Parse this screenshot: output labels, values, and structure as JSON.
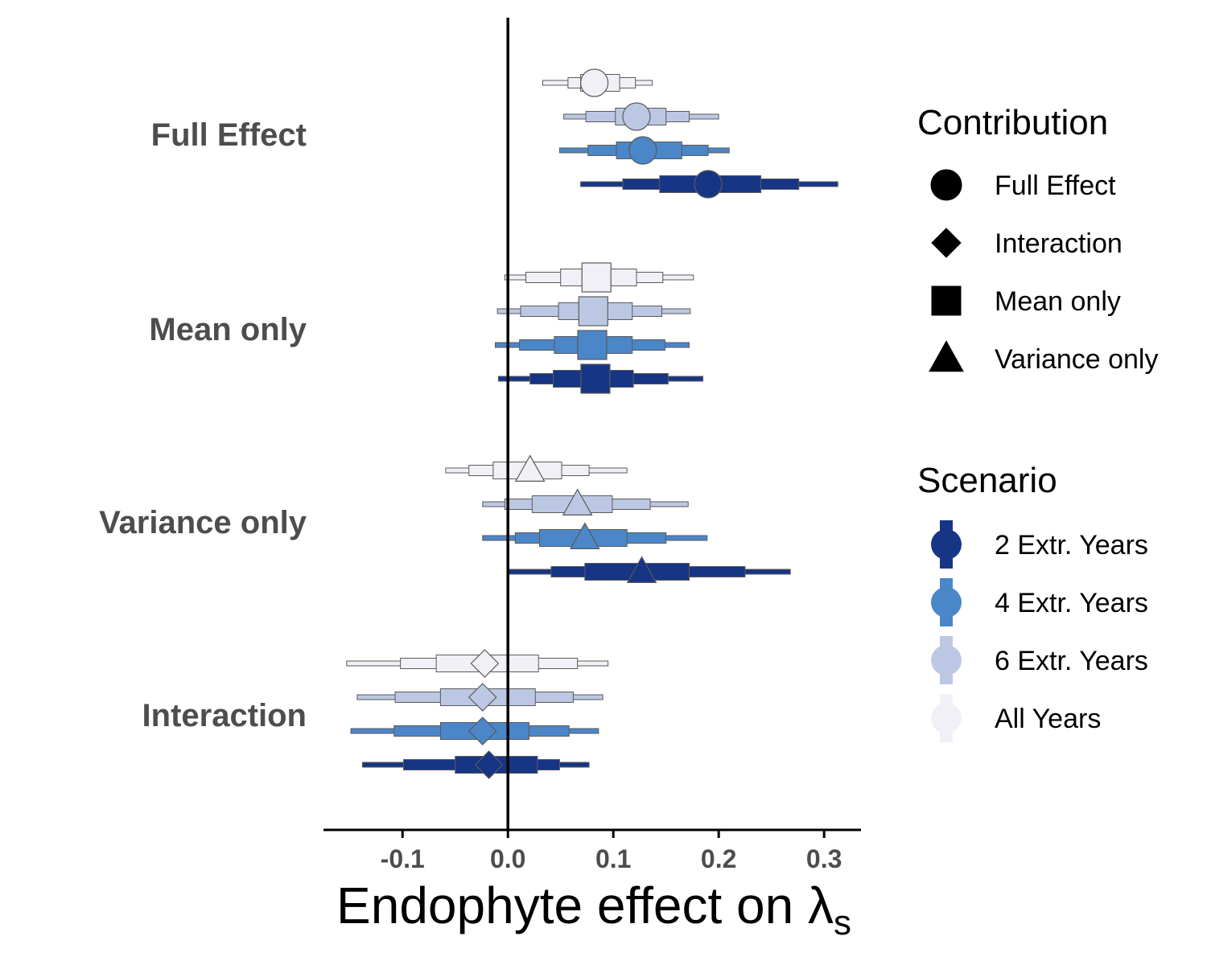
{
  "chart_data": {
    "type": "interval",
    "xlabel": "Endophyte effect on λ",
    "xlabel_subscript": "s",
    "xlim": [
      -0.175,
      0.335
    ],
    "xticks": [
      -0.1,
      0.0,
      0.1,
      0.2,
      0.3
    ],
    "xtick_labels": [
      "-0.1",
      "0.0",
      "0.1",
      "0.2",
      "0.3"
    ],
    "reference_line": 0,
    "categories": [
      "Full Effect",
      "Mean only",
      "Variance only",
      "Interaction"
    ],
    "scenarios": [
      {
        "name": "All Years",
        "color": "#f1f0f6"
      },
      {
        "name": "6 Extr. Years",
        "color": "#bcc8e3"
      },
      {
        "name": "4 Extr. Years",
        "color": "#4a86c8"
      },
      {
        "name": "2 Extr. Years",
        "color": "#163584"
      }
    ],
    "shapes": {
      "Full Effect": "circle",
      "Interaction": "diamond",
      "Mean only": "square",
      "Variance only": "triangle"
    },
    "series": [
      {
        "category": "Full Effect",
        "scenario": "All Years",
        "point": 0.082,
        "inner": [
          0.069,
          0.106
        ],
        "mid": [
          0.057,
          0.121
        ],
        "outer": [
          0.033,
          0.137
        ]
      },
      {
        "category": "Full Effect",
        "scenario": "6 Extr. Years",
        "point": 0.122,
        "inner": [
          0.102,
          0.15
        ],
        "mid": [
          0.074,
          0.172
        ],
        "outer": [
          0.053,
          0.2
        ]
      },
      {
        "category": "Full Effect",
        "scenario": "4 Extr. Years",
        "point": 0.128,
        "inner": [
          0.103,
          0.165
        ],
        "mid": [
          0.076,
          0.19
        ],
        "outer": [
          0.049,
          0.21
        ]
      },
      {
        "category": "Full Effect",
        "scenario": "2 Extr. Years",
        "point": 0.19,
        "inner": [
          0.144,
          0.24
        ],
        "mid": [
          0.109,
          0.276
        ],
        "outer": [
          0.069,
          0.313
        ]
      },
      {
        "category": "Mean only",
        "scenario": "All Years",
        "point": 0.084,
        "inner": [
          0.05,
          0.122
        ],
        "mid": [
          0.017,
          0.147
        ],
        "outer": [
          -0.003,
          0.176
        ]
      },
      {
        "category": "Mean only",
        "scenario": "6 Extr. Years",
        "point": 0.081,
        "inner": [
          0.048,
          0.118
        ],
        "mid": [
          0.012,
          0.146
        ],
        "outer": [
          -0.01,
          0.173
        ]
      },
      {
        "category": "Mean only",
        "scenario": "4 Extr. Years",
        "point": 0.08,
        "inner": [
          0.044,
          0.118
        ],
        "mid": [
          0.011,
          0.149
        ],
        "outer": [
          -0.012,
          0.172
        ]
      },
      {
        "category": "Mean only",
        "scenario": "2 Extr. Years",
        "point": 0.083,
        "inner": [
          0.043,
          0.119
        ],
        "mid": [
          0.021,
          0.152
        ],
        "outer": [
          -0.009,
          0.185
        ]
      },
      {
        "category": "Variance only",
        "scenario": "All Years",
        "point": 0.021,
        "inner": [
          -0.014,
          0.051
        ],
        "mid": [
          -0.037,
          0.077
        ],
        "outer": [
          -0.059,
          0.113
        ]
      },
      {
        "category": "Variance only",
        "scenario": "6 Extr. Years",
        "point": 0.066,
        "inner": [
          0.023,
          0.099
        ],
        "mid": [
          -0.003,
          0.135
        ],
        "outer": [
          -0.024,
          0.171
        ]
      },
      {
        "category": "Variance only",
        "scenario": "4 Extr. Years",
        "point": 0.073,
        "inner": [
          0.03,
          0.113
        ],
        "mid": [
          0.007,
          0.15
        ],
        "outer": [
          -0.024,
          0.189
        ]
      },
      {
        "category": "Variance only",
        "scenario": "2 Extr. Years",
        "point": 0.127,
        "inner": [
          0.073,
          0.172
        ],
        "mid": [
          0.041,
          0.225
        ],
        "outer": [
          0.001,
          0.268
        ]
      },
      {
        "category": "Interaction",
        "scenario": "All Years",
        "point": -0.022,
        "inner": [
          -0.068,
          0.029
        ],
        "mid": [
          -0.102,
          0.066
        ],
        "outer": [
          -0.153,
          0.095
        ]
      },
      {
        "category": "Interaction",
        "scenario": "6 Extr. Years",
        "point": -0.024,
        "inner": [
          -0.064,
          0.026
        ],
        "mid": [
          -0.107,
          0.062
        ],
        "outer": [
          -0.143,
          0.09
        ]
      },
      {
        "category": "Interaction",
        "scenario": "4 Extr. Years",
        "point": -0.024,
        "inner": [
          -0.064,
          0.02
        ],
        "mid": [
          -0.108,
          0.058
        ],
        "outer": [
          -0.149,
          0.086
        ]
      },
      {
        "category": "Interaction",
        "scenario": "2 Extr. Years",
        "point": -0.018,
        "inner": [
          -0.05,
          0.028
        ],
        "mid": [
          -0.099,
          0.049
        ],
        "outer": [
          -0.138,
          0.077
        ]
      }
    ]
  },
  "legend": {
    "contribution": {
      "title": "Contribution",
      "items": [
        {
          "label": "Full Effect",
          "shape": "circle"
        },
        {
          "label": "Interaction",
          "shape": "diamond"
        },
        {
          "label": "Mean only",
          "shape": "square"
        },
        {
          "label": "Variance only",
          "shape": "triangle"
        }
      ]
    },
    "scenario": {
      "title": "Scenario",
      "items": [
        {
          "label": "2 Extr. Years",
          "color": "#163584"
        },
        {
          "label": "4 Extr. Years",
          "color": "#4a86c8"
        },
        {
          "label": "6 Extr. Years",
          "color": "#bcc8e3"
        },
        {
          "label": "All Years",
          "color": "#f1f0f6"
        }
      ]
    }
  }
}
